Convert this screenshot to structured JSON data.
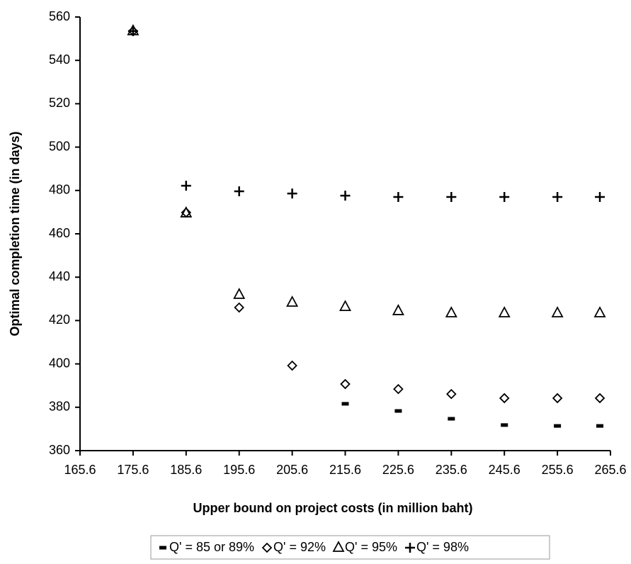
{
  "chart_data": {
    "type": "scatter",
    "x_label": "Upper bound on project costs (in million baht)",
    "y_label": "Optimal completion time (in days)",
    "x": [
      175.6,
      185.6,
      195.6,
      205.6,
      215.6,
      225.6,
      235.6,
      245.6,
      255.6,
      263.6
    ],
    "series": [
      {
        "name": "Q' = 85 or 89%",
        "marker": "dash",
        "color": "#000000",
        "values": [
          null,
          null,
          null,
          null,
          381.6,
          378.3,
          374.7,
          371.8,
          371.4,
          371.4
        ]
      },
      {
        "name": "Q' = 92%",
        "marker": "diamond",
        "color": "#000000",
        "values": [
          553.5,
          469.8,
          426,
          399.2,
          390.7,
          388.4,
          386.1,
          384.2,
          384.2,
          384.2
        ]
      },
      {
        "name": "Q' = 95%",
        "marker": "triangle",
        "color": "#000000",
        "values": [
          553.5,
          469.5,
          431.9,
          428.3,
          426.3,
          424.4,
          423.4,
          423.4,
          423.4,
          423.4
        ]
      },
      {
        "name": "Q' = 98%",
        "marker": "plus",
        "color": "#000000",
        "values": [
          553.5,
          482.2,
          479.6,
          478.6,
          477.6,
          477,
          477,
          477,
          477,
          477
        ]
      }
    ],
    "xlim": [
      165.6,
      265.6
    ],
    "xticks": [
      165.6,
      175.6,
      185.6,
      195.6,
      205.6,
      215.6,
      225.6,
      235.6,
      245.6,
      255.6,
      265.6
    ],
    "ylim": [
      360,
      560
    ],
    "yticks": [
      360,
      380,
      400,
      420,
      440,
      460,
      480,
      500,
      520,
      540,
      560
    ],
    "legend": "bottom"
  }
}
